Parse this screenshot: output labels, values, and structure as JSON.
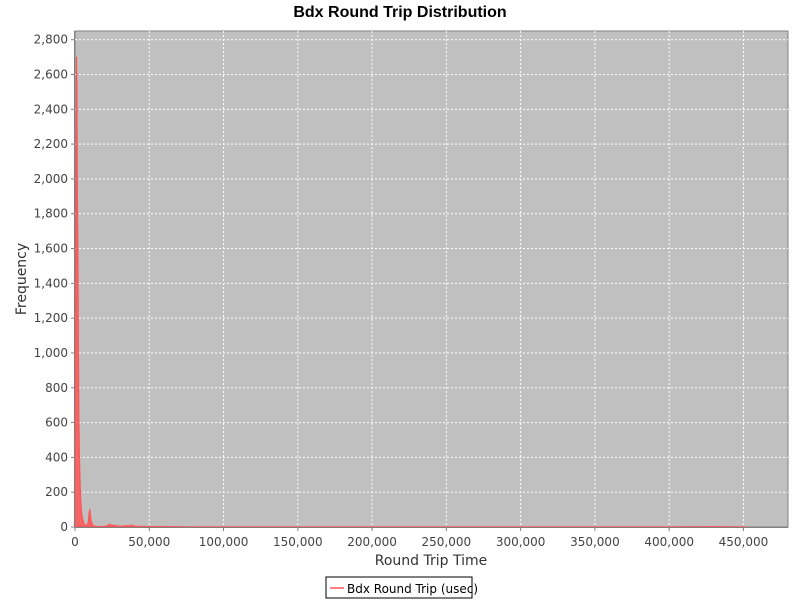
{
  "chart_data": {
    "type": "area",
    "title": "Bdx Round Trip Distribution",
    "xlabel": "Round Trip Time",
    "ylabel": "Frequency",
    "xlim": [
      0,
      480000
    ],
    "ylim": [
      0,
      2850
    ],
    "x_ticks": [
      0,
      50000,
      100000,
      150000,
      200000,
      250000,
      300000,
      350000,
      400000,
      450000
    ],
    "x_tick_labels": [
      "0",
      "50,000",
      "100,000",
      "150,000",
      "200,000",
      "250,000",
      "300,000",
      "350,000",
      "400,000",
      "450,000"
    ],
    "y_ticks": [
      0,
      200,
      400,
      600,
      800,
      1000,
      1200,
      1400,
      1600,
      1800,
      2000,
      2200,
      2400,
      2600,
      2800
    ],
    "y_tick_labels": [
      "0",
      "200",
      "400",
      "600",
      "800",
      "1,000",
      "1,200",
      "1,400",
      "1,600",
      "1,800",
      "2,000",
      "2,200",
      "2,400",
      "2,600",
      "2,800"
    ],
    "grid": true,
    "legend_position": "bottom",
    "background_color": "#c0c0c0",
    "series_color": "#ff5555",
    "series": [
      {
        "name": "Bdx Round Trip (usec)",
        "x": [
          0,
          500,
          1000,
          1300,
          1600,
          2000,
          2300,
          2600,
          3000,
          3400,
          3800,
          4300,
          5000,
          6000,
          7000,
          8000,
          9000,
          9500,
          10000,
          10500,
          11000,
          12000,
          13000,
          15000,
          18000,
          20000,
          22000,
          23000,
          24000,
          25000,
          27000,
          28000,
          30000,
          32000,
          34000,
          36000,
          38000,
          40000,
          42000,
          45000,
          50000,
          60000,
          80000,
          100000,
          150000,
          200000,
          250000,
          300000,
          350000,
          400000,
          430000,
          450000,
          452000
        ],
        "values": [
          0,
          1200,
          2700,
          2500,
          1900,
          1520,
          1000,
          620,
          400,
          260,
          160,
          90,
          50,
          20,
          10,
          5,
          30,
          80,
          100,
          60,
          30,
          10,
          5,
          3,
          2,
          3,
          8,
          15,
          12,
          8,
          10,
          6,
          5,
          4,
          8,
          6,
          10,
          5,
          4,
          3,
          2,
          2,
          1,
          1,
          1,
          1,
          1,
          1,
          1,
          1,
          2,
          1,
          0
        ]
      }
    ]
  }
}
